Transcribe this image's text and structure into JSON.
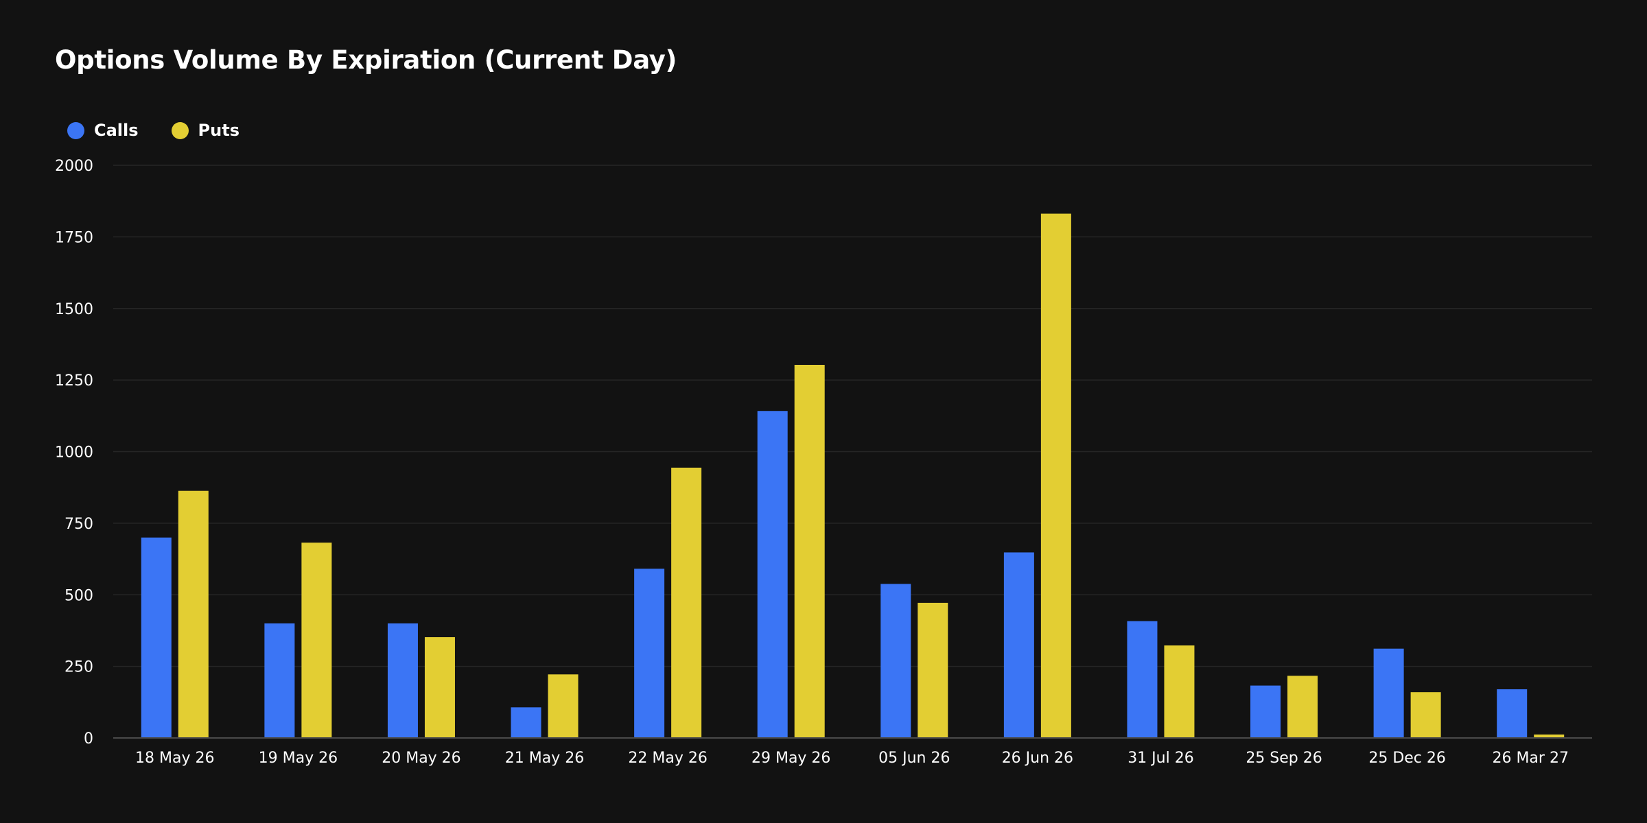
{
  "title": "Options Volume By Expiration (Current Day)",
  "chart_data": {
    "type": "bar",
    "title": "Options Volume By Expiration (Current Day)",
    "xlabel": "",
    "ylabel": "",
    "ylim": [
      0,
      2000
    ],
    "yticks": [
      0,
      250,
      500,
      750,
      1000,
      1250,
      1500,
      1750,
      2000
    ],
    "grid": true,
    "legend_position": "top-left",
    "categories": [
      "18 May 26",
      "19 May 26",
      "20 May 26",
      "21 May 26",
      "22 May 26",
      "29 May 26",
      "05 Jun 26",
      "26 Jun 26",
      "31 Jul 26",
      "25 Sep 26",
      "25 Dec 26",
      "26 Mar 27"
    ],
    "series": [
      {
        "name": "Calls",
        "color": "#3b75f5",
        "values": [
          700,
          400,
          400,
          107,
          591,
          1142,
          538,
          648,
          408,
          183,
          312,
          170
        ]
      },
      {
        "name": "Puts",
        "color": "#e3ce33",
        "values": [
          863,
          682,
          352,
          222,
          944,
          1303,
          472,
          1831,
          323,
          217,
          160,
          12
        ]
      }
    ]
  },
  "colors": {
    "background": "#121212",
    "grid": "#262626",
    "axis": "#4a4a4a",
    "text": "#ffffff"
  }
}
